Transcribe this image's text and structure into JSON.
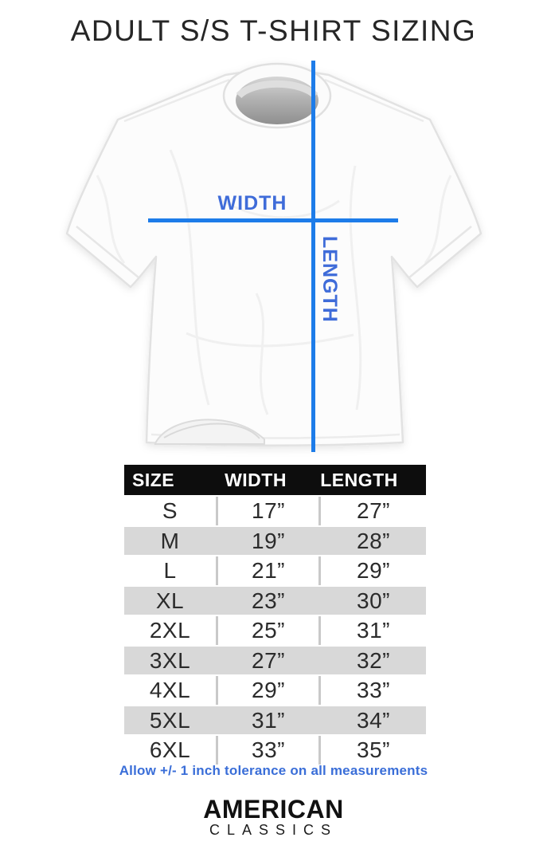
{
  "title": "ADULT S/S T-SHIRT SIZING",
  "diagram": {
    "width_label": "WIDTH",
    "length_label": "LENGTH",
    "line_color": "#1d7ce9",
    "label_color": "#3f6cd9"
  },
  "chart_data": {
    "type": "table",
    "title": "ADULT S/S T-SHIRT SIZING",
    "columns": [
      "SIZE",
      "WIDTH",
      "LENGTH"
    ],
    "rows": [
      [
        "S",
        "17”",
        "27”"
      ],
      [
        "M",
        "19”",
        "28”"
      ],
      [
        "L",
        "21”",
        "29”"
      ],
      [
        "XL",
        "23”",
        "30”"
      ],
      [
        "2XL",
        "25”",
        "31”"
      ],
      [
        "3XL",
        "27”",
        "32”"
      ],
      [
        "4XL",
        "29”",
        "33”"
      ],
      [
        "5XL",
        "31”",
        "34”"
      ],
      [
        "6XL",
        "33”",
        "35”"
      ]
    ],
    "unit": "inches",
    "note": "Allow +/- 1 inch tolerance on all measurements",
    "layout": {
      "header_bg": "#0d0d0d",
      "alt_row_bg": "#d8d8d8",
      "grid": "alternating rows, no outer border"
    }
  },
  "footer": {
    "tolerance_note": "Allow +/- 1 inch tolerance on all measurements"
  },
  "brand": {
    "name_top": "AMERICAN",
    "name_bottom": "C L A S S I C S",
    "name_bottom_plain": "CLASSICS"
  }
}
